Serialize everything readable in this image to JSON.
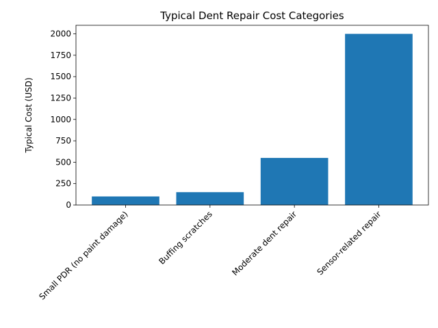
{
  "chart_data": {
    "type": "bar",
    "title": "Typical Dent Repair Cost Categories",
    "xlabel": "",
    "ylabel": "Typical Cost (USD)",
    "categories": [
      "Small PDR (no paint damage)",
      "Buffing scratches",
      "Moderate dent repair",
      "Sensor-related repair"
    ],
    "values": [
      100,
      150,
      550,
      2000
    ],
    "ylim": [
      0,
      2100
    ],
    "yticks": [
      "0",
      "250",
      "500",
      "750",
      "1000",
      "1250",
      "1500",
      "1750",
      "2000"
    ],
    "bar_color": "#1f77b4",
    "grid": false,
    "legend": "none"
  }
}
